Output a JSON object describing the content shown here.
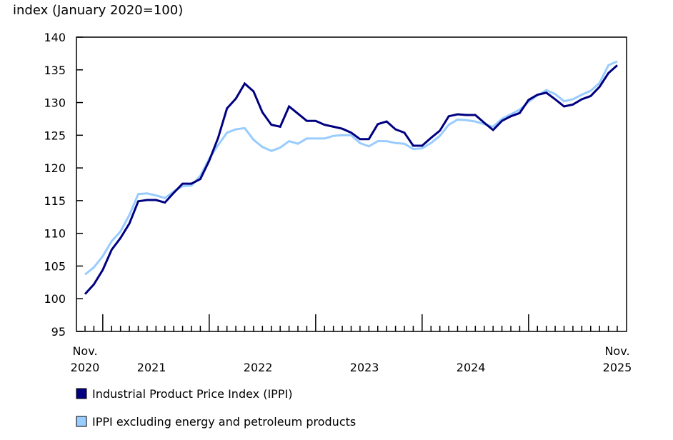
{
  "chart_data": {
    "type": "line",
    "ylabel": "index (January 2020=100)",
    "ylim": [
      95,
      140
    ],
    "yticks": [
      95,
      100,
      105,
      110,
      115,
      120,
      125,
      130,
      135,
      140
    ],
    "ytick_labels": [
      "95",
      "100",
      "105",
      "110",
      "115",
      "120",
      "125",
      "130",
      "135",
      "140"
    ],
    "x_start": "2020-11",
    "x_end": "2025-11",
    "grid": false,
    "x_labels": [
      {
        "month": "2020-11",
        "line1": "Nov.",
        "line2": "2020"
      },
      {
        "month": "2021-06",
        "line1": "",
        "line2": "2021"
      },
      {
        "month": "2022-06",
        "line1": "",
        "line2": "2022"
      },
      {
        "month": "2023-06",
        "line1": "",
        "line2": "2023"
      },
      {
        "month": "2024-06",
        "line1": "",
        "line2": "2024"
      },
      {
        "month": "2025-11",
        "line1": "Nov.",
        "line2": "2025"
      }
    ],
    "legend_placement": "bottom-left",
    "series": [
      {
        "name": "Industrial Product Price Index (IPPI)",
        "color": "#000080",
        "values": [
          100.7,
          102.2,
          104.4,
          107.5,
          109.3,
          111.5,
          114.9,
          115.1,
          115.1,
          114.7,
          116.2,
          117.6,
          117.6,
          118.3,
          121.1,
          124.6,
          129.1,
          130.6,
          132.9,
          131.7,
          128.5,
          126.6,
          126.3,
          129.4,
          128.3,
          127.2,
          127.2,
          126.6,
          126.3,
          126.0,
          125.4,
          124.4,
          124.4,
          126.7,
          127.1,
          125.9,
          125.4,
          123.4,
          123.4,
          124.6,
          125.7,
          127.9,
          128.2,
          128.1,
          128.1,
          126.9,
          125.8,
          127.2,
          127.9,
          128.4,
          130.4,
          131.2,
          131.5,
          130.5,
          129.4,
          129.7,
          130.5,
          131.0,
          132.4,
          134.5,
          135.7
        ]
      },
      {
        "name": "IPPI excluding energy and petroleum products",
        "color": "#99ccff",
        "values": [
          103.7,
          104.8,
          106.5,
          108.8,
          110.3,
          112.8,
          116.0,
          116.1,
          115.8,
          115.4,
          116.4,
          117.2,
          117.3,
          118.8,
          121.4,
          123.5,
          125.4,
          125.9,
          126.1,
          124.3,
          123.2,
          122.6,
          123.1,
          124.1,
          123.7,
          124.5,
          124.5,
          124.5,
          124.9,
          125.0,
          125.0,
          123.8,
          123.3,
          124.1,
          124.1,
          123.8,
          123.7,
          122.9,
          123.0,
          123.8,
          124.9,
          126.6,
          127.4,
          127.3,
          127.1,
          126.7,
          126.3,
          127.5,
          128.2,
          128.9,
          130.1,
          131.1,
          131.9,
          131.3,
          130.2,
          130.5,
          131.2,
          131.8,
          133.0,
          135.7,
          136.3
        ]
      }
    ]
  }
}
